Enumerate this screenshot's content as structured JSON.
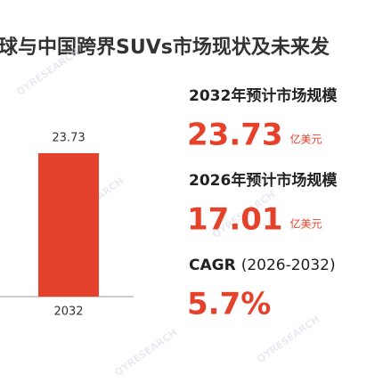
{
  "chart_data": {
    "type": "bar",
    "title": "球与中国跨界SUVs市场现状及未来发",
    "categories": [
      "2032"
    ],
    "values": [
      23.73
    ],
    "color": "#e4422a",
    "watermark": "QYRESEARCH",
    "stats": [
      {
        "label": "2032年预计市场规模",
        "value": 23.73,
        "unit": "亿美元"
      },
      {
        "label": "2026年预计市场规模",
        "value": 17.01,
        "unit": "亿美元"
      },
      {
        "label": "CAGR",
        "sublabel": "(2026-2032)",
        "value": 5.7,
        "value_label": "5.7%"
      }
    ]
  }
}
